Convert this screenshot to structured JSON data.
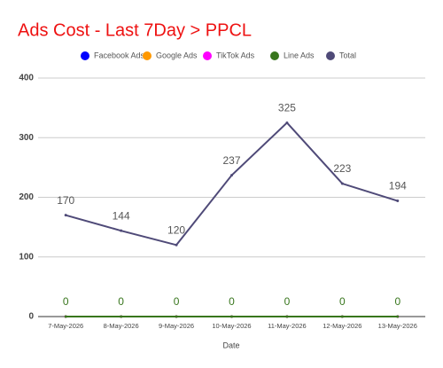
{
  "chart_data": {
    "type": "line",
    "title": "Ads Cost - Last 7Day > PPCL",
    "x_label": "Date",
    "categories": [
      "7-May-2026",
      "8-May-2026",
      "9-May-2026",
      "10-May-2026",
      "11-May-2026",
      "12-May-2026",
      "13-May-2026"
    ],
    "series": [
      {
        "name": "Facebook Ads",
        "color": "#0000ff",
        "values": [
          0,
          0,
          0,
          0,
          0,
          0,
          0
        ]
      },
      {
        "name": "Google Ads",
        "color": "#ff9900",
        "values": [
          0,
          0,
          0,
          0,
          0,
          0,
          0
        ]
      },
      {
        "name": "TikTok Ads",
        "color": "#ff00ff",
        "values": [
          0,
          0,
          0,
          0,
          0,
          0,
          0
        ]
      },
      {
        "name": "Line Ads",
        "color": "#38761d",
        "values": [
          0,
          0,
          0,
          0,
          0,
          0,
          0
        ]
      },
      {
        "name": "Total",
        "color": "#4f4a78",
        "values": [
          170,
          144,
          120,
          237,
          325,
          223,
          194
        ]
      }
    ],
    "ylim": [
      0,
      400
    ],
    "yticks": [
      0,
      100,
      200,
      300,
      400
    ],
    "grid": true,
    "legend": "top"
  }
}
